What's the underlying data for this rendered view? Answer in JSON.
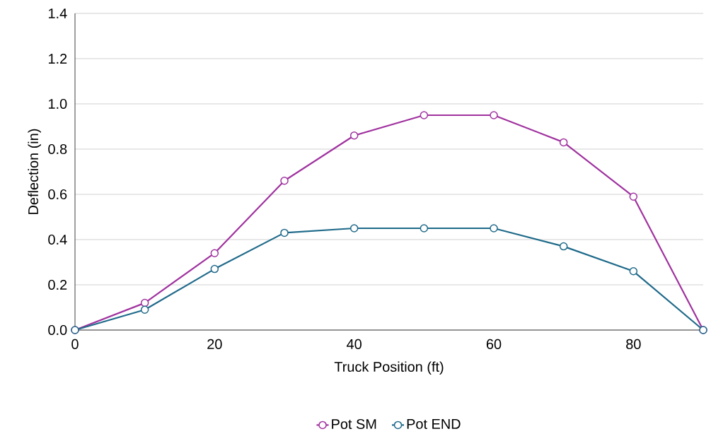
{
  "chart_data": {
    "type": "line",
    "xlabel": "Truck Position (ft)",
    "ylabel": "Deflection (in)",
    "x": [
      0,
      10,
      20,
      30,
      40,
      50,
      60,
      70,
      80,
      90
    ],
    "series": [
      {
        "name": "Pot SM",
        "color": "#a0329f",
        "values": [
          0,
          0.12,
          0.34,
          0.66,
          0.86,
          0.95,
          0.95,
          0.83,
          0.59,
          0
        ]
      },
      {
        "name": "Pot END",
        "color": "#1f6a8a",
        "values": [
          0,
          0.09,
          0.27,
          0.43,
          0.45,
          0.45,
          0.45,
          0.37,
          0.26,
          0
        ]
      }
    ],
    "xlim": [
      0,
      90
    ],
    "xticks": [
      0,
      20,
      40,
      60,
      80
    ],
    "ylim": [
      0,
      1.4
    ],
    "yticks": [
      {
        "value": 0,
        "label": "0.0"
      },
      {
        "value": 0.2,
        "label": "0.2"
      },
      {
        "value": 0.4,
        "label": "0.4"
      },
      {
        "value": 0.6,
        "label": "0.6"
      },
      {
        "value": 0.8,
        "label": "0.8"
      },
      {
        "value": 1.0,
        "label": "1.0"
      },
      {
        "value": 1.2,
        "label": "1.2"
      },
      {
        "value": 1.4,
        "label": "1.4"
      }
    ],
    "grid": "y",
    "legend": "bottom",
    "marker": "circle",
    "line_style": "solid"
  }
}
